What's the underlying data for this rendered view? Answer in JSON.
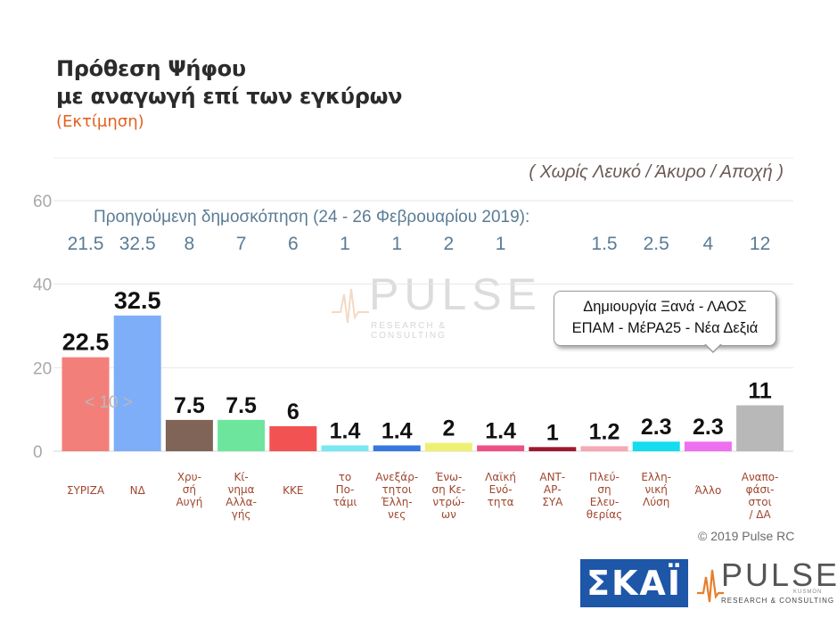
{
  "title_lines": [
    "Πρόθεση Ψήφου",
    "με αναγωγή επί των εγκύρων"
  ],
  "subtitle": "(Εκτίμηση)",
  "note": "( Χωρίς Λευκό / Άκυρο / Αποχή )",
  "previous_caption": "Προηγούμενη δημοσκόπηση (24 - 26 Φεβρουαρίου 2019):",
  "callout": {
    "line1": "Δημιουργία Ξανά - ΛΑΟΣ",
    "line2": "ΕΠΑΜ - ΜέΡΑ25 - Νέα Δεξιά"
  },
  "pager": "< 10 >",
  "watermark": {
    "name": "PULSE",
    "sub": "RESEARCH & CONSULTING",
    "brand": "KUSMON"
  },
  "copyright": "© 2019 Pulse RC",
  "logos": {
    "skai": "ΣΚΑΪ",
    "pulse": "PULSE",
    "pulse_sub": "RESEARCH & CONSULTING",
    "pulse_brand": "KUSMON"
  },
  "chart_data": {
    "type": "bar",
    "categories": [
      [
        "ΣΥΡΙΖΑ"
      ],
      [
        "ΝΔ"
      ],
      [
        "Χρυ-",
        "σή",
        "Αυγή"
      ],
      [
        "Κί-",
        "νημα",
        "Αλλα-",
        "γής"
      ],
      [
        "ΚΚΕ"
      ],
      [
        "το",
        "Πο-",
        "τάμι"
      ],
      [
        "Ανεξάρ-",
        "τητοι",
        "Έλλη-",
        "νες"
      ],
      [
        "Ένω-",
        "ση Κε-",
        "ντρώ-",
        "ων"
      ],
      [
        "Λαϊκή",
        "Ενό-",
        "τητα"
      ],
      [
        "ΑΝΤ-",
        "ΑΡ-",
        "ΣΥΑ"
      ],
      [
        "Πλεύ-",
        "ση",
        "Ελευ-",
        "θερίας"
      ],
      [
        "Ελλη-",
        "νική",
        "Λύση"
      ],
      [
        "Άλλο"
      ],
      [
        "Αναπο-",
        "φάσι-",
        "στοι",
        "/ ΔΑ"
      ]
    ],
    "values": [
      22.5,
      32.5,
      7.5,
      7.5,
      6,
      1.4,
      1.4,
      2,
      1.4,
      1,
      1.2,
      2.3,
      2.3,
      11
    ],
    "value_labels": [
      "22.5",
      "32.5",
      "7.5",
      "7.5",
      "6",
      "1.4",
      "1.4",
      "2",
      "1.4",
      "1",
      "1.2",
      "2.3",
      "2.3",
      "11"
    ],
    "previous_values": [
      "21.5",
      "32.5",
      "8",
      "7",
      "6",
      "1",
      "1",
      "2",
      "1",
      "",
      "1.5",
      "2.5",
      "4",
      "12"
    ],
    "colors": [
      "#f37f7a",
      "#7eaef8",
      "#7f6457",
      "#6ee59d",
      "#f25252",
      "#78e8f3",
      "#3877e0",
      "#eef073",
      "#ee4f87",
      "#9e1830",
      "#f6a8b5",
      "#15dcef",
      "#ed70f0",
      "#b8b8b8"
    ],
    "y_ticks": [
      "0",
      "20",
      "40",
      "60"
    ],
    "ylim": [
      0,
      60
    ],
    "grid": true
  }
}
